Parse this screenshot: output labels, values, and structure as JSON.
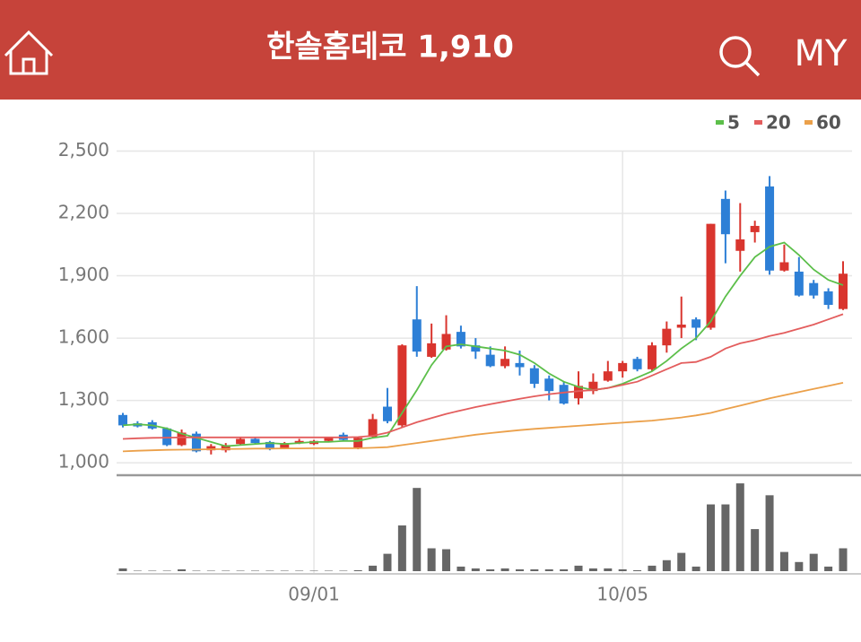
{
  "header": {
    "title": "한솔홈데코 1,910",
    "my": "MY"
  },
  "chart_data": {
    "type": "candlestick",
    "categories": [
      null,
      null,
      null,
      null,
      null,
      null,
      null,
      null,
      null,
      null,
      null,
      null,
      null,
      "09/01",
      null,
      null,
      null,
      null,
      null,
      null,
      null,
      null,
      null,
      null,
      null,
      null,
      null,
      null,
      null,
      null,
      null,
      null,
      null,
      null,
      "10/05",
      null,
      null,
      null,
      null,
      null,
      null,
      null,
      null,
      null,
      null,
      null,
      null,
      null,
      null,
      null
    ],
    "open": [
      1230,
      1190,
      1195,
      1165,
      1085,
      1140,
      1060,
      1060,
      1090,
      1115,
      1100,
      1070,
      1095,
      1090,
      1105,
      1135,
      1070,
      1125,
      1270,
      1180,
      1690,
      1510,
      1545,
      1630,
      1565,
      1520,
      1465,
      1480,
      1455,
      1405,
      1375,
      1310,
      1345,
      1395,
      1440,
      1500,
      1450,
      1565,
      1650,
      1690,
      1650,
      2270,
      2020,
      2110,
      2330,
      1925,
      1920,
      1865,
      1825,
      1740
    ],
    "high": [
      1240,
      1200,
      1205,
      1170,
      1160,
      1150,
      1090,
      1095,
      1125,
      1120,
      1105,
      1100,
      1115,
      1110,
      1125,
      1145,
      1125,
      1235,
      1360,
      1570,
      1850,
      1670,
      1710,
      1660,
      1600,
      1560,
      1560,
      1540,
      1470,
      1420,
      1390,
      1440,
      1430,
      1490,
      1490,
      1510,
      1580,
      1680,
      1800,
      1700,
      2150,
      2310,
      2250,
      2165,
      2380,
      2050,
      1990,
      1880,
      1840,
      1970
    ],
    "low": [
      1170,
      1170,
      1160,
      1080,
      1080,
      1050,
      1040,
      1050,
      1085,
      1090,
      1060,
      1065,
      1090,
      1085,
      1100,
      1105,
      1065,
      1120,
      1190,
      1170,
      1510,
      1505,
      1540,
      1550,
      1500,
      1460,
      1455,
      1420,
      1360,
      1300,
      1280,
      1280,
      1330,
      1390,
      1410,
      1440,
      1440,
      1530,
      1600,
      1590,
      1640,
      1960,
      1920,
      2060,
      1905,
      1920,
      1800,
      1790,
      1740,
      1735
    ],
    "close": [
      1180,
      1175,
      1165,
      1085,
      1145,
      1055,
      1080,
      1085,
      1115,
      1095,
      1065,
      1095,
      1105,
      1105,
      1120,
      1110,
      1120,
      1210,
      1200,
      1565,
      1535,
      1575,
      1620,
      1560,
      1535,
      1465,
      1500,
      1460,
      1380,
      1345,
      1285,
      1370,
      1390,
      1440,
      1480,
      1450,
      1565,
      1645,
      1665,
      1650,
      2150,
      2100,
      2075,
      2140,
      1925,
      1965,
      1805,
      1805,
      1760,
      1910
    ],
    "up_color": "#d9352e",
    "down_color": "#2d7fd6",
    "ylim": [
      940,
      2580
    ],
    "yticks": [
      {
        "value": 1000,
        "label": "1,000"
      },
      {
        "value": 1300,
        "label": "1,300"
      },
      {
        "value": 1600,
        "label": "1,600"
      },
      {
        "value": 1900,
        "label": "1,900"
      },
      {
        "value": 2200,
        "label": "2,200"
      },
      {
        "value": 2500,
        "label": "2,500"
      }
    ],
    "grid": true,
    "moving_averages": [
      {
        "name": "5",
        "color": "#5cbf4a",
        "values": [
          1180,
          1185,
          1180,
          1165,
          1140,
          1120,
          1100,
          1080,
          1085,
          1090,
          1095,
          1090,
          1095,
          1100,
          1100,
          1105,
          1105,
          1120,
          1130,
          1240,
          1350,
          1470,
          1560,
          1570,
          1560,
          1550,
          1540,
          1520,
          1480,
          1430,
          1390,
          1365,
          1350,
          1360,
          1380,
          1410,
          1440,
          1490,
          1550,
          1600,
          1680,
          1800,
          1900,
          1990,
          2040,
          2060,
          2000,
          1930,
          1880,
          1855
        ]
      },
      {
        "name": "20",
        "color": "#e35d5d",
        "values": [
          1115,
          1118,
          1120,
          1121,
          1122,
          1122,
          1122,
          1122,
          1122,
          1122,
          1122,
          1122,
          1122,
          1122,
          1122,
          1122,
          1124,
          1130,
          1145,
          1170,
          1195,
          1215,
          1235,
          1252,
          1268,
          1282,
          1295,
          1308,
          1320,
          1330,
          1338,
          1345,
          1350,
          1360,
          1375,
          1390,
          1420,
          1450,
          1480,
          1485,
          1510,
          1550,
          1575,
          1590,
          1610,
          1625,
          1645,
          1665,
          1690,
          1715
        ]
      },
      {
        "name": "60",
        "color": "#eba04a",
        "values": [
          1055,
          1058,
          1060,
          1062,
          1063,
          1064,
          1065,
          1066,
          1067,
          1068,
          1068,
          1069,
          1069,
          1070,
          1070,
          1070,
          1070,
          1072,
          1075,
          1085,
          1095,
          1105,
          1115,
          1125,
          1135,
          1143,
          1150,
          1157,
          1163,
          1168,
          1173,
          1178,
          1183,
          1188,
          1193,
          1198,
          1203,
          1210,
          1218,
          1228,
          1240,
          1258,
          1275,
          1292,
          1310,
          1325,
          1340,
          1355,
          1370,
          1385
        ]
      }
    ],
    "volume": {
      "color": "#666666",
      "vlim": [
        0,
        100
      ],
      "values": [
        3,
        0.5,
        0.5,
        0.5,
        2,
        0.5,
        0.5,
        0.5,
        0.5,
        0.5,
        0.5,
        0.5,
        0.5,
        0.5,
        0.5,
        0.5,
        1,
        6,
        19,
        50,
        91,
        25,
        24,
        5,
        3,
        2,
        3,
        2,
        2,
        2,
        2,
        6,
        3,
        3,
        2,
        1,
        6,
        12,
        20,
        5,
        73,
        73,
        96,
        46,
        83,
        21,
        10,
        19,
        5,
        25
      ]
    }
  }
}
